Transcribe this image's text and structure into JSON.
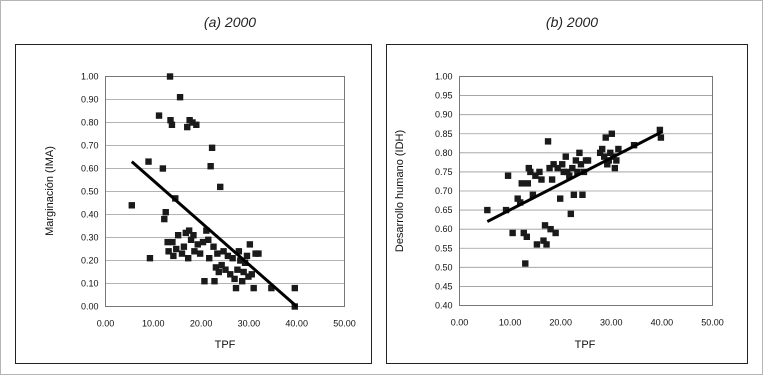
{
  "chart_data": [
    {
      "type": "scatter",
      "title": "(a) 2000",
      "xlabel": "TPF",
      "ylabel": "Marginación (IMA)",
      "xlim": [
        0,
        50
      ],
      "ylim": [
        0,
        1
      ],
      "x_ticks": [
        "0.00",
        "10.00",
        "20.00",
        "30.00",
        "40.00",
        "50.00"
      ],
      "y_ticks": [
        "0.00",
        "0.10",
        "0.20",
        "0.30",
        "0.40",
        "0.50",
        "0.60",
        "0.70",
        "0.80",
        "0.90",
        "1.00"
      ],
      "grid": "horizontal",
      "marker": "square",
      "trend_line": [
        [
          5.5,
          0.63
        ],
        [
          40.0,
          0.0
        ]
      ],
      "points": [
        [
          5.5,
          0.44
        ],
        [
          9.0,
          0.63
        ],
        [
          9.3,
          0.21
        ],
        [
          11.2,
          0.83
        ],
        [
          12.0,
          0.6
        ],
        [
          12.3,
          0.38
        ],
        [
          12.6,
          0.41
        ],
        [
          13.0,
          0.28
        ],
        [
          13.2,
          0.24
        ],
        [
          13.5,
          1.0
        ],
        [
          13.6,
          0.81
        ],
        [
          13.9,
          0.79
        ],
        [
          14.0,
          0.28
        ],
        [
          14.2,
          0.22
        ],
        [
          14.6,
          0.47
        ],
        [
          14.8,
          0.25
        ],
        [
          15.2,
          0.31
        ],
        [
          15.6,
          0.91
        ],
        [
          16.0,
          0.23
        ],
        [
          16.4,
          0.26
        ],
        [
          16.8,
          0.32
        ],
        [
          17.1,
          0.78
        ],
        [
          17.3,
          0.21
        ],
        [
          17.5,
          0.33
        ],
        [
          17.6,
          0.81
        ],
        [
          17.9,
          0.29
        ],
        [
          18.2,
          0.8
        ],
        [
          18.4,
          0.31
        ],
        [
          18.6,
          0.24
        ],
        [
          19.0,
          0.79
        ],
        [
          19.3,
          0.27
        ],
        [
          19.8,
          0.23
        ],
        [
          20.4,
          0.28
        ],
        [
          20.7,
          0.11
        ],
        [
          21.1,
          0.33
        ],
        [
          21.5,
          0.29
        ],
        [
          21.7,
          0.21
        ],
        [
          22.0,
          0.61
        ],
        [
          22.3,
          0.69
        ],
        [
          22.6,
          0.26
        ],
        [
          22.8,
          0.11
        ],
        [
          23.1,
          0.17
        ],
        [
          23.4,
          0.23
        ],
        [
          23.7,
          0.15
        ],
        [
          24.0,
          0.52
        ],
        [
          24.3,
          0.18
        ],
        [
          24.7,
          0.24
        ],
        [
          25.1,
          0.16
        ],
        [
          25.6,
          0.22
        ],
        [
          26.1,
          0.14
        ],
        [
          26.6,
          0.21
        ],
        [
          27.0,
          0.12
        ],
        [
          27.3,
          0.08
        ],
        [
          27.6,
          0.16
        ],
        [
          27.9,
          0.24
        ],
        [
          28.2,
          0.2
        ],
        [
          28.6,
          0.11
        ],
        [
          28.9,
          0.15
        ],
        [
          29.2,
          0.19
        ],
        [
          29.6,
          0.22
        ],
        [
          29.9,
          0.13
        ],
        [
          30.2,
          0.27
        ],
        [
          30.6,
          0.14
        ],
        [
          31.0,
          0.08
        ],
        [
          31.4,
          0.23
        ],
        [
          32.0,
          0.23
        ],
        [
          34.7,
          0.08
        ],
        [
          39.6,
          0.08
        ],
        [
          39.6,
          0.0
        ]
      ]
    },
    {
      "type": "scatter",
      "title": "(b) 2000",
      "xlabel": "TPF",
      "ylabel": "Desarrollo humano (IDH)",
      "xlim": [
        0,
        50
      ],
      "ylim": [
        0.4,
        1
      ],
      "x_ticks": [
        "0.00",
        "10.00",
        "20.00",
        "30.00",
        "40.00",
        "50.00"
      ],
      "y_ticks": [
        "0.40",
        "0.45",
        "0.50",
        "0.55",
        "0.60",
        "0.65",
        "0.70",
        "0.75",
        "0.80",
        "0.85",
        "0.90",
        "0.95",
        "1.00"
      ],
      "grid": "horizontal",
      "marker": "square",
      "trend_line": [
        [
          5.5,
          0.62
        ],
        [
          40.0,
          0.855
        ]
      ],
      "points": [
        [
          5.5,
          0.65
        ],
        [
          9.2,
          0.65
        ],
        [
          9.6,
          0.74
        ],
        [
          10.5,
          0.59
        ],
        [
          11.5,
          0.68
        ],
        [
          12.0,
          0.67
        ],
        [
          12.3,
          0.72
        ],
        [
          12.7,
          0.59
        ],
        [
          13.0,
          0.51
        ],
        [
          13.3,
          0.58
        ],
        [
          13.5,
          0.72
        ],
        [
          13.7,
          0.76
        ],
        [
          14.0,
          0.75
        ],
        [
          14.5,
          0.69
        ],
        [
          15.0,
          0.74
        ],
        [
          15.3,
          0.56
        ],
        [
          15.8,
          0.75
        ],
        [
          16.2,
          0.73
        ],
        [
          16.6,
          0.57
        ],
        [
          16.9,
          0.61
        ],
        [
          17.2,
          0.56
        ],
        [
          17.5,
          0.83
        ],
        [
          17.8,
          0.76
        ],
        [
          18.0,
          0.6
        ],
        [
          18.3,
          0.73
        ],
        [
          18.6,
          0.77
        ],
        [
          19.0,
          0.59
        ],
        [
          19.4,
          0.76
        ],
        [
          19.9,
          0.68
        ],
        [
          20.3,
          0.77
        ],
        [
          20.6,
          0.75
        ],
        [
          21.0,
          0.79
        ],
        [
          21.3,
          0.75
        ],
        [
          21.7,
          0.74
        ],
        [
          22.0,
          0.64
        ],
        [
          22.3,
          0.76
        ],
        [
          22.6,
          0.69
        ],
        [
          23.0,
          0.78
        ],
        [
          23.3,
          0.75
        ],
        [
          23.7,
          0.8
        ],
        [
          24.0,
          0.77
        ],
        [
          24.3,
          0.69
        ],
        [
          24.6,
          0.75
        ],
        [
          25.0,
          0.78
        ],
        [
          25.4,
          0.78
        ],
        [
          27.8,
          0.8
        ],
        [
          28.2,
          0.81
        ],
        [
          28.6,
          0.79
        ],
        [
          28.9,
          0.84
        ],
        [
          29.2,
          0.77
        ],
        [
          29.5,
          0.78
        ],
        [
          29.8,
          0.8
        ],
        [
          30.1,
          0.85
        ],
        [
          30.4,
          0.79
        ],
        [
          30.7,
          0.76
        ],
        [
          31.0,
          0.78
        ],
        [
          31.4,
          0.81
        ],
        [
          34.5,
          0.82
        ],
        [
          39.6,
          0.86
        ],
        [
          39.8,
          0.84
        ]
      ]
    }
  ]
}
